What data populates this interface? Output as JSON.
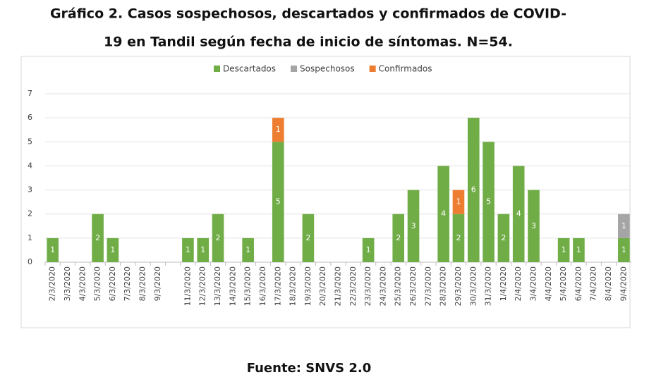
{
  "chart_data": {
    "type": "stacked_bar",
    "title": "Gráfico 2. Casos sospechosos, descartados y confirmados de COVID-",
    "subtitle": "19 en Tandil según fecha de inicio de síntomas. N=54.",
    "source": "Fuente: SNVS 2.0",
    "categories": [
      "2/3/2020",
      "3/3/2020",
      "4/3/2020",
      "5/3/2020",
      "6/3/2020",
      "7/3/2020",
      "8/3/2020",
      "9/3/2020",
      null,
      "11/3/2020",
      "12/3/2020",
      "13/3/2020",
      "14/3/2020",
      "15/3/2020",
      "16/3/2020",
      "17/3/2020",
      "18/3/2020",
      "19/3/2020",
      "20/3/2020",
      "21/3/2020",
      "22/3/2020",
      "23/3/2020",
      "24/3/2020",
      "25/3/2020",
      "26/3/2020",
      "27/3/2020",
      "28/3/2020",
      "29/3/2020",
      "30/3/2020",
      "31/3/2020",
      "1/4/2020",
      "2/4/2020",
      "3/4/2020",
      "4/4/2020",
      "5/4/2020",
      "6/4/2020",
      "7/4/2020",
      "8/4/2020",
      "9/4/2020"
    ],
    "series": [
      {
        "name": "Descartados",
        "color": "#70ad47",
        "values": [
          1,
          0,
          0,
          2,
          1,
          0,
          0,
          0,
          0,
          1,
          1,
          2,
          0,
          1,
          0,
          5,
          0,
          2,
          0,
          0,
          0,
          1,
          0,
          2,
          3,
          0,
          4,
          2,
          6,
          5,
          2,
          4,
          3,
          0,
          1,
          1,
          0,
          0,
          1
        ]
      },
      {
        "name": "Sospechosos",
        "color": "#a5a5a5",
        "values": [
          0,
          0,
          0,
          0,
          0,
          0,
          0,
          0,
          0,
          0,
          0,
          0,
          0,
          0,
          0,
          0,
          0,
          0,
          0,
          0,
          0,
          0,
          0,
          0,
          0,
          0,
          0,
          0,
          0,
          0,
          0,
          0,
          0,
          0,
          0,
          0,
          0,
          0,
          1
        ]
      },
      {
        "name": "Confirmados",
        "color": "#ed7d31",
        "values": [
          0,
          0,
          0,
          0,
          0,
          0,
          0,
          0,
          0,
          0,
          0,
          0,
          0,
          0,
          0,
          1,
          0,
          0,
          0,
          0,
          0,
          0,
          0,
          0,
          0,
          0,
          0,
          1,
          0,
          0,
          0,
          0,
          0,
          0,
          0,
          0,
          0,
          0,
          0
        ]
      }
    ],
    "ylim": [
      0,
      7
    ],
    "yticks": [
      0,
      1,
      2,
      3,
      4,
      5,
      6,
      7
    ],
    "grid": true,
    "legend": "top"
  }
}
